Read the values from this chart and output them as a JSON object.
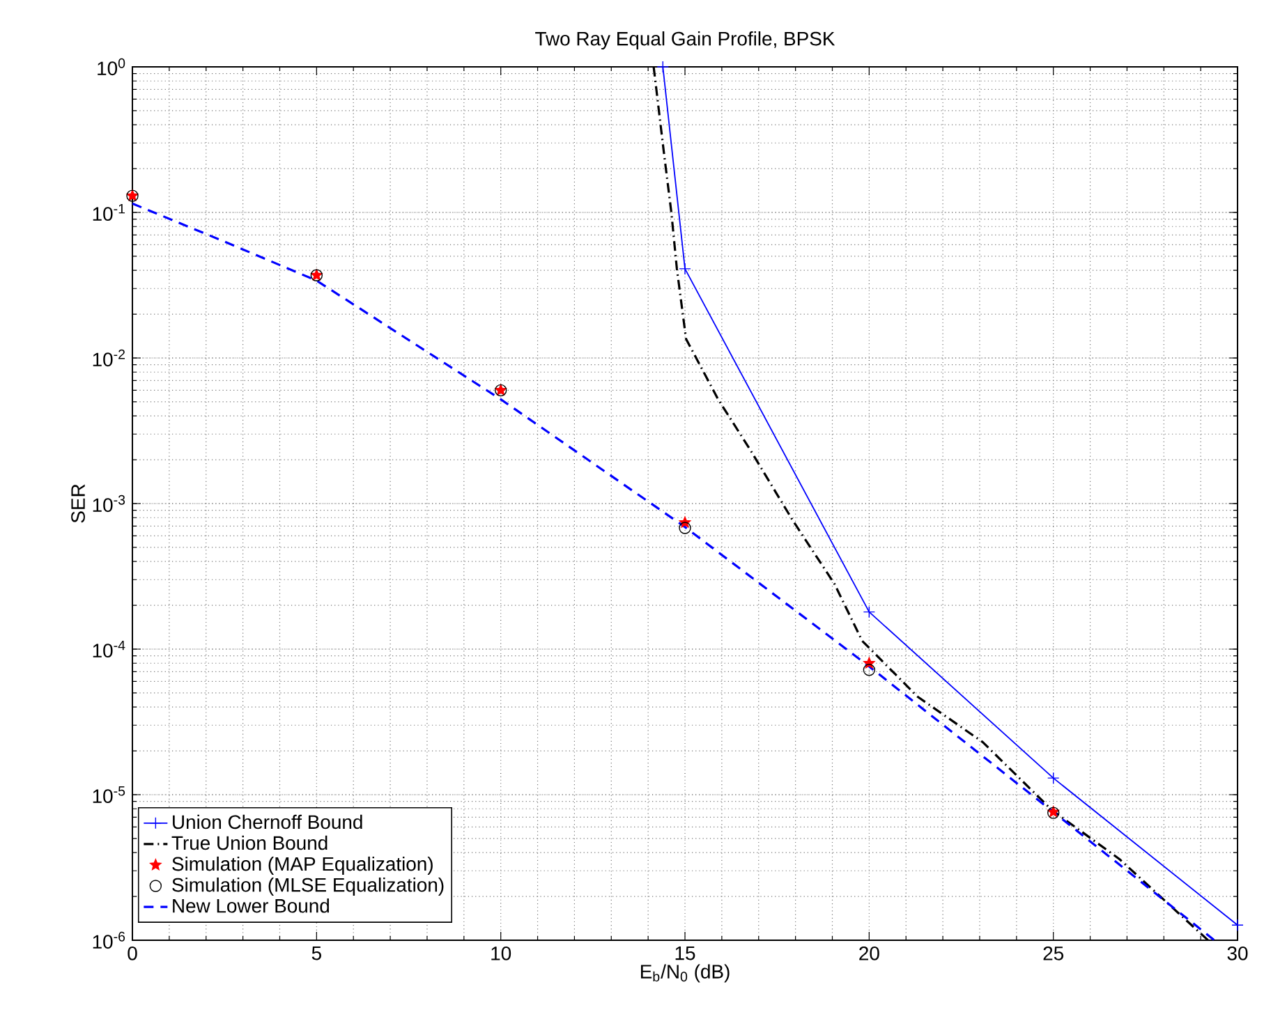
{
  "chart_data": {
    "type": "line",
    "title": "Two Ray Equal Gain Profile, BPSK",
    "xlabel": "E$_{b}$/N$_{0}$ (dB)",
    "ylabel": "SER",
    "log": "y",
    "grid": true,
    "legend": "bottom left",
    "xlim": [
      0,
      30
    ],
    "xticks": [
      0,
      5,
      10,
      15,
      20,
      25,
      30
    ],
    "ylim": [
      1e-06,
      1
    ],
    "yticks": [
      {
        "value": 1e-06,
        "label": "10$^{-6}$"
      },
      {
        "value": 1e-05,
        "label": "10$^{-5}$"
      },
      {
        "value": 0.0001,
        "label": "10$^{-4}$"
      },
      {
        "value": 0.001,
        "label": "10$^{-3}$"
      },
      {
        "value": 0.01,
        "label": "10$^{-2}$"
      },
      {
        "value": 0.1,
        "label": "10$^{-1}$"
      },
      {
        "value": 1,
        "label": "10$^{0}$"
      }
    ],
    "series": [
      {
        "name": "Union Chernoff Bound",
        "color": "#0000ff",
        "marker": "cross",
        "line_style": "solid",
        "x": [
          14.4,
          15,
          20,
          25,
          30
        ],
        "values": [
          1,
          0.041,
          0.00018,
          1.3e-05,
          1.27e-06
        ]
      },
      {
        "name": "True Union Bound",
        "color": "#000000",
        "marker": "none",
        "line_style": "dashdot",
        "x": [
          14.15,
          14.43,
          14.63,
          14.78,
          15.03,
          15.9,
          16.79,
          17.92,
          19.06,
          19.81,
          21.32,
          23.08,
          24.97,
          26.8,
          29.2
        ],
        "values": [
          1,
          0.255,
          0.1,
          0.041,
          0.0135,
          0.0052,
          0.0023,
          0.00077,
          0.00028,
          0.000114,
          4.7e-05,
          2.3e-05,
          7.8e-06,
          3.6e-06,
          1e-06
        ]
      },
      {
        "name": "Simulation (MAP Equalization)",
        "type": "scatter",
        "color": "#ff0000",
        "marker": "star",
        "x": [
          0,
          5,
          10,
          15,
          20,
          25
        ],
        "values": [
          0.13,
          0.037,
          0.006,
          0.00074,
          8e-05,
          7.6e-06
        ]
      },
      {
        "name": "Simulation (MLSE Equalization)",
        "type": "scatter",
        "color": "#000000",
        "marker": "circle",
        "x": [
          0,
          5,
          10,
          15,
          20,
          25
        ],
        "values": [
          0.13,
          0.037,
          0.006,
          0.00068,
          7.2e-05,
          7.5e-06
        ]
      },
      {
        "name": "New Lower Bound",
        "color": "#0000ff",
        "marker": "none",
        "line_style": "dashed",
        "x": [
          0,
          2.5,
          5,
          10,
          15,
          20,
          25,
          29.37
        ],
        "values": [
          0.115,
          0.063,
          0.034,
          0.0052,
          0.00069,
          7.6e-05,
          7.6e-06,
          1e-06
        ]
      }
    ]
  }
}
